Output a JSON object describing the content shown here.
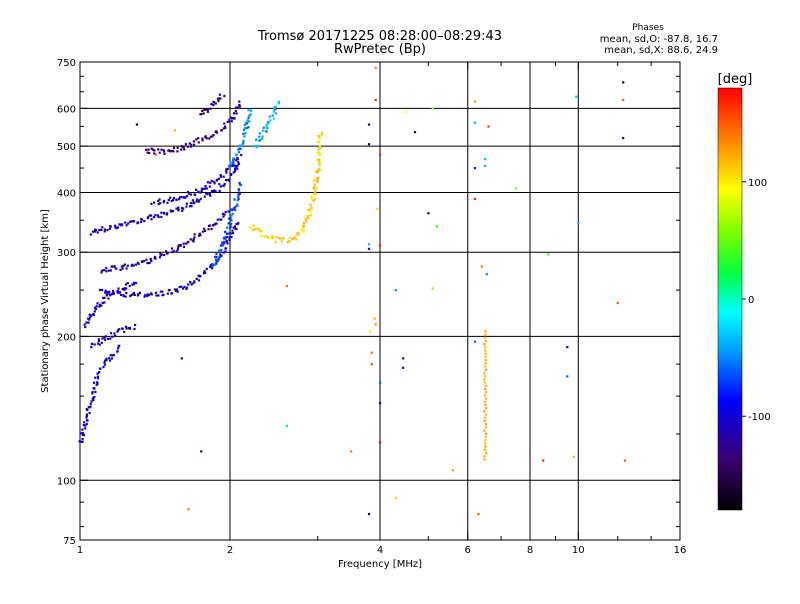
{
  "chart_data": {
    "type": "scatter",
    "title": "Tromsø 20171225 08:28:00–08:29:43",
    "subtitle": "RwPretec (Bp)",
    "stats": {
      "heading": "Phases",
      "line1": "mean, sd,O:  -87.8, 16.7",
      "line2": "mean, sd,X:  88.6, 24.9"
    },
    "xlabel": "Frequency [MHz]",
    "ylabel": "Stationary phase Virtual Height [km]",
    "x_scale": "log",
    "y_scale": "log",
    "xlim": [
      1,
      16
    ],
    "ylim": [
      75,
      750
    ],
    "x_ticks": [
      1,
      2,
      4,
      6,
      8,
      10,
      16
    ],
    "x_tick_labels": [
      "1",
      "2",
      "4",
      "6",
      "8",
      "10",
      "16"
    ],
    "x_minor_ticks": [
      3,
      5,
      7,
      9,
      12,
      14
    ],
    "y_ticks": [
      75,
      100,
      200,
      300,
      400,
      500,
      600,
      750
    ],
    "y_tick_labels": [
      "75",
      "100",
      "200",
      "300",
      "400",
      "500",
      "600",
      "750"
    ],
    "y_minor_ticks": [
      80,
      90,
      125,
      150,
      175,
      250,
      350,
      450,
      550,
      650,
      700
    ],
    "x_gridlines": [
      2,
      4,
      6,
      8,
      10
    ],
    "y_gridlines": [
      100,
      200,
      300,
      400,
      500,
      600
    ],
    "colorbar": {
      "label": "[deg]",
      "range": [
        -180,
        180
      ],
      "ticks": [
        -100,
        0,
        100
      ],
      "tick_labels": [
        "-100",
        "0",
        "100"
      ]
    },
    "traces": [
      {
        "x": [
          1.0,
          1.03,
          1.06,
          1.09,
          1.12,
          1.15,
          1.18,
          1.2
        ],
        "y": [
          120,
          135,
          150,
          168,
          175,
          180,
          185,
          192
        ],
        "phase": -100
      },
      {
        "x": [
          1.02,
          1.06,
          1.1,
          1.15,
          1.2,
          1.25,
          1.3
        ],
        "y": [
          210,
          225,
          235,
          245,
          250,
          255,
          262
        ],
        "phase": -110
      },
      {
        "x": [
          1.05,
          1.1,
          1.15,
          1.2,
          1.25,
          1.3
        ],
        "y": [
          190,
          195,
          200,
          205,
          208,
          210
        ],
        "phase": -105
      },
      {
        "x": [
          1.1,
          1.2,
          1.3,
          1.4,
          1.5,
          1.6,
          1.7,
          1.8,
          1.9,
          2.0,
          2.08
        ],
        "y": [
          250,
          246,
          244,
          245,
          247,
          252,
          262,
          275,
          292,
          320,
          350
        ],
        "phase": -110
      },
      {
        "x": [
          1.1,
          1.2,
          1.3,
          1.4,
          1.5,
          1.6,
          1.7,
          1.8,
          1.9,
          2.0
        ],
        "y": [
          275,
          278,
          283,
          290,
          300,
          310,
          322,
          335,
          350,
          370
        ],
        "phase": -120
      },
      {
        "x": [
          1.05,
          1.15,
          1.25,
          1.35,
          1.45,
          1.55,
          1.65,
          1.75,
          1.85,
          1.95,
          2.05,
          2.1
        ],
        "y": [
          330,
          338,
          346,
          352,
          358,
          366,
          376,
          388,
          400,
          418,
          445,
          470
        ],
        "phase": -110
      },
      {
        "x": [
          1.4,
          1.5,
          1.6,
          1.7,
          1.8,
          1.9,
          2.0,
          2.1
        ],
        "y": [
          380,
          385,
          392,
          400,
          412,
          428,
          450,
          480
        ],
        "phase": -115
      },
      {
        "x": [
          1.35,
          1.45,
          1.55,
          1.65,
          1.75,
          1.85,
          1.95,
          2.05,
          2.1
        ],
        "y": [
          490,
          486,
          492,
          502,
          515,
          530,
          550,
          580,
          620
        ],
        "phase": -130
      },
      {
        "x": [
          1.75,
          1.8,
          1.85,
          1.9,
          1.95
        ],
        "y": [
          580,
          600,
          615,
          630,
          640
        ],
        "phase": -140
      },
      {
        "x": [
          1.85,
          1.9,
          1.95,
          2.0,
          2.05,
          2.1
        ],
        "y": [
          280,
          300,
          320,
          345,
          375,
          420
        ],
        "phase": -65
      },
      {
        "x": [
          2.0,
          2.05,
          2.1,
          2.15,
          2.2
        ],
        "y": [
          450,
          475,
          500,
          540,
          600
        ],
        "phase": -50
      },
      {
        "x": [
          2.25,
          2.3,
          2.35,
          2.4,
          2.45,
          2.5
        ],
        "y": [
          500,
          520,
          540,
          560,
          590,
          620
        ],
        "phase": -40
      },
      {
        "x": [
          2.2,
          2.3,
          2.4,
          2.5,
          2.6,
          2.7,
          2.8,
          2.88,
          2.95,
          3.0,
          3.04
        ],
        "y": [
          342,
          330,
          322,
          318,
          318,
          322,
          335,
          360,
          400,
          450,
          540
        ],
        "phase": 110
      }
    ],
    "scatter_points": [
      {
        "x": 1.3,
        "y": 555,
        "phase": -160
      },
      {
        "x": 1.42,
        "y": 480,
        "phase": 150
      },
      {
        "x": 1.55,
        "y": 540,
        "phase": 120
      },
      {
        "x": 1.6,
        "y": 180,
        "phase": -130
      },
      {
        "x": 1.65,
        "y": 87,
        "phase": 140
      },
      {
        "x": 1.75,
        "y": 115,
        "phase": -120
      },
      {
        "x": 2.6,
        "y": 255,
        "phase": 140
      },
      {
        "x": 2.6,
        "y": 130,
        "phase": 20
      },
      {
        "x": 3.5,
        "y": 115,
        "phase": 140
      },
      {
        "x": 3.8,
        "y": 555,
        "phase": -110
      },
      {
        "x": 3.8,
        "y": 505,
        "phase": -150
      },
      {
        "x": 3.8,
        "y": 312,
        "phase": -30
      },
      {
        "x": 3.8,
        "y": 305,
        "phase": -80
      },
      {
        "x": 3.82,
        "y": 205,
        "phase": 100
      },
      {
        "x": 3.85,
        "y": 185,
        "phase": 140
      },
      {
        "x": 3.85,
        "y": 175,
        "phase": 160
      },
      {
        "x": 3.8,
        "y": 85,
        "phase": -140
      },
      {
        "x": 3.92,
        "y": 730,
        "phase": 140
      },
      {
        "x": 3.92,
        "y": 625,
        "phase": 170
      },
      {
        "x": 3.95,
        "y": 370,
        "phase": 110
      },
      {
        "x": 3.9,
        "y": 218,
        "phase": 120
      },
      {
        "x": 3.92,
        "y": 212,
        "phase": 130
      },
      {
        "x": 4.0,
        "y": 480,
        "phase": 170
      },
      {
        "x": 4.0,
        "y": 310,
        "phase": 170
      },
      {
        "x": 4.0,
        "y": 160,
        "phase": -60
      },
      {
        "x": 4.0,
        "y": 145,
        "phase": -110
      },
      {
        "x": 4.0,
        "y": 120,
        "phase": 180
      },
      {
        "x": 4.3,
        "y": 250,
        "phase": -50
      },
      {
        "x": 4.3,
        "y": 92,
        "phase": 110
      },
      {
        "x": 4.45,
        "y": 180,
        "phase": -100
      },
      {
        "x": 4.45,
        "y": 172,
        "phase": -90
      },
      {
        "x": 4.5,
        "y": 590,
        "phase": 90
      },
      {
        "x": 4.7,
        "y": 535,
        "phase": -160
      },
      {
        "x": 5.0,
        "y": 362,
        "phase": -150
      },
      {
        "x": 5.1,
        "y": 252,
        "phase": 60
      },
      {
        "x": 5.1,
        "y": 600,
        "phase": 60
      },
      {
        "x": 5.2,
        "y": 340,
        "phase": 40
      },
      {
        "x": 5.6,
        "y": 105,
        "phase": 130
      },
      {
        "x": 6.2,
        "y": 620,
        "phase": 130
      },
      {
        "x": 6.2,
        "y": 560,
        "phase": -40
      },
      {
        "x": 6.2,
        "y": 450,
        "phase": -80
      },
      {
        "x": 6.2,
        "y": 388,
        "phase": 170
      },
      {
        "x": 6.2,
        "y": 195,
        "phase": -60
      },
      {
        "x": 6.3,
        "y": 85,
        "phase": 150
      },
      {
        "x": 6.4,
        "y": 280,
        "phase": 140
      },
      {
        "x": 6.5,
        "y": 470,
        "phase": -30
      },
      {
        "x": 6.5,
        "y": 455,
        "phase": -40
      },
      {
        "x": 6.55,
        "y": 270,
        "phase": -50
      },
      {
        "x": 6.6,
        "y": 550,
        "phase": 160
      },
      {
        "x": 7.5,
        "y": 408,
        "phase": 50
      },
      {
        "x": 8.7,
        "y": 297,
        "phase": 40
      },
      {
        "x": 8.5,
        "y": 110,
        "phase": 170
      },
      {
        "x": 9.5,
        "y": 190,
        "phase": -100
      },
      {
        "x": 9.5,
        "y": 165,
        "phase": -60
      },
      {
        "x": 9.8,
        "y": 112,
        "phase": 120
      },
      {
        "x": 9.9,
        "y": 635,
        "phase": -30
      },
      {
        "x": 10.0,
        "y": 345,
        "phase": -40
      },
      {
        "x": 12.0,
        "y": 235,
        "phase": 150
      },
      {
        "x": 12.3,
        "y": 680,
        "phase": -160
      },
      {
        "x": 12.3,
        "y": 625,
        "phase": 150
      },
      {
        "x": 12.3,
        "y": 520,
        "phase": -130
      },
      {
        "x": 12.4,
        "y": 110,
        "phase": 150
      }
    ],
    "vertical_columns": [
      {
        "x": 6.5,
        "y_from": 110,
        "y_to": 205,
        "phase": 120
      }
    ]
  }
}
